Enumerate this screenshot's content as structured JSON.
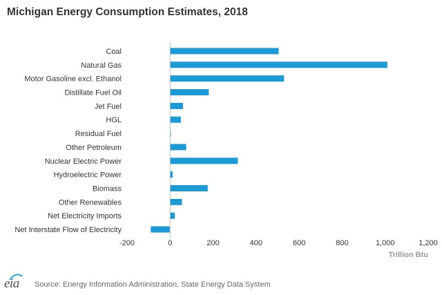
{
  "title": "Michigan Energy Consumption Estimates, 2018",
  "chart_data": {
    "type": "bar",
    "orientation": "horizontal",
    "categories": [
      "Coal",
      "Natural Gas",
      "Motor Gasoline excl. Ethanol",
      "Distillate Fuel Oil",
      "Jet Fuel",
      "HGL",
      "Residual Fuel",
      "Other Petroleum",
      "Nuclear Electric Power",
      "Hydroelectric Power",
      "Biomass",
      "Other Renewables",
      "Net Electricity Imports",
      "Net Interstate Flow of Electricity"
    ],
    "values": [
      505,
      1010,
      530,
      180,
      60,
      50,
      3,
      75,
      315,
      12,
      175,
      55,
      22,
      -90
    ],
    "xlim": [
      -200,
      1200
    ],
    "xticks": [
      -200,
      0,
      200,
      400,
      600,
      800,
      1000,
      1200
    ],
    "xtick_labels": [
      "-200",
      "0",
      "200",
      "400",
      "600",
      "800",
      "1,000",
      "1,200"
    ],
    "xlabel": "Trillion Btu",
    "bar_color": "#1a9ad6",
    "grid": false
  },
  "footer": {
    "logo_text": "eia",
    "source": "Source: Energy Information Administration, State Energy Data System"
  }
}
